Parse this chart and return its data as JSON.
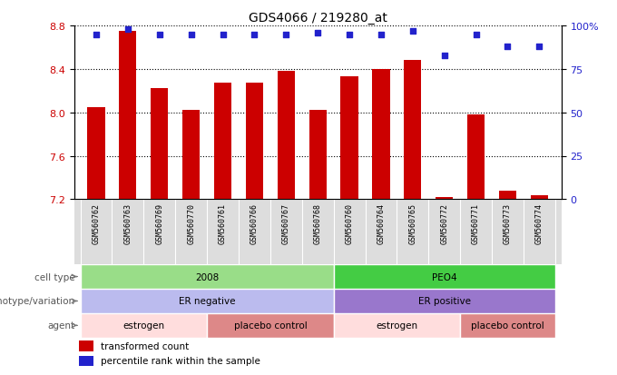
{
  "title": "GDS4066 / 219280_at",
  "samples": [
    "GSM560762",
    "GSM560763",
    "GSM560769",
    "GSM560770",
    "GSM560761",
    "GSM560766",
    "GSM560767",
    "GSM560768",
    "GSM560760",
    "GSM560764",
    "GSM560765",
    "GSM560772",
    "GSM560771",
    "GSM560773",
    "GSM560774"
  ],
  "bar_values": [
    8.05,
    8.75,
    8.22,
    8.02,
    8.27,
    8.27,
    8.38,
    8.02,
    8.33,
    8.4,
    8.48,
    7.22,
    7.98,
    7.28,
    7.24
  ],
  "dot_values": [
    95,
    98,
    95,
    95,
    95,
    95,
    95,
    96,
    95,
    95,
    97,
    83,
    95,
    88,
    88
  ],
  "bar_color": "#cc0000",
  "dot_color": "#2222cc",
  "ymin": 7.2,
  "ymax": 8.8,
  "y2min": 0,
  "y2max": 100,
  "yticks": [
    7.2,
    7.6,
    8.0,
    8.4,
    8.8
  ],
  "y2ticks": [
    0,
    25,
    50,
    75,
    100
  ],
  "y2ticklabels": [
    "0",
    "25",
    "50",
    "75",
    "100%"
  ],
  "gridlines": [
    7.6,
    8.0,
    8.4
  ],
  "cell_type_groups": [
    {
      "label": "2008",
      "start": 0,
      "end": 8,
      "color": "#99dd88"
    },
    {
      "label": "PEO4",
      "start": 8,
      "end": 15,
      "color": "#44cc44"
    }
  ],
  "genotype_groups": [
    {
      "label": "ER negative",
      "start": 0,
      "end": 8,
      "color": "#bbbbee"
    },
    {
      "label": "ER positive",
      "start": 8,
      "end": 15,
      "color": "#9977cc"
    }
  ],
  "agent_groups": [
    {
      "label": "estrogen",
      "start": 0,
      "end": 4,
      "color": "#ffdddd"
    },
    {
      "label": "placebo control",
      "start": 4,
      "end": 8,
      "color": "#dd8888"
    },
    {
      "label": "estrogen",
      "start": 8,
      "end": 12,
      "color": "#ffdddd"
    },
    {
      "label": "placebo control",
      "start": 12,
      "end": 15,
      "color": "#dd8888"
    }
  ],
  "legend_bar_label": "transformed count",
  "legend_dot_label": "percentile rank within the sample",
  "row_label_color": "#555555",
  "xlabel_color": "#cc0000",
  "y2label_color": "#2222cc",
  "xtick_bg": "#dddddd"
}
